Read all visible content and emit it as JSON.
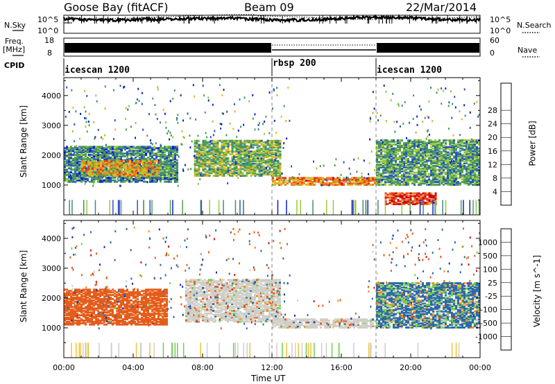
{
  "header": {
    "station": "Goose Bay (fitACF)",
    "beam": "Beam 09",
    "date": "22/Mar/2014"
  },
  "status_panels": {
    "nsky_label": "N.Sky",
    "nsky_ticks": [
      "10^5",
      "10^0"
    ],
    "nsearch_label": "N.Search",
    "nsearch_ticks": [
      "10^5",
      "10^0"
    ],
    "freq_label_top": "Freq.",
    "freq_label_unit": "[MHz]",
    "freq_ticks": [
      "18",
      "8"
    ],
    "nave_label": "Nave",
    "nave_ticks": [
      "60",
      "0"
    ],
    "cpid_label": "CPID",
    "cpid_segments": [
      {
        "name": "icescan 1200",
        "start_hour": 0
      },
      {
        "name": "rbsp 200",
        "start_hour": 12
      },
      {
        "name": "icescan 1200",
        "start_hour": 18
      }
    ]
  },
  "chart_data": [
    {
      "type": "heatmap",
      "title": "",
      "quantity": "Power",
      "ylabel": "Slant Range [km]",
      "ylim": [
        0,
        4600
      ],
      "yticks": [
        "1000",
        "2000",
        "3000",
        "4000"
      ],
      "colorbar_label": "Power [dB]",
      "colorbar_ticks": [
        "4",
        "8",
        "12",
        "16",
        "20",
        "24",
        "28"
      ],
      "colors": [
        "#0b1fd1",
        "#2855b8",
        "#3f8d7c",
        "#52a14a",
        "#9bc83a",
        "#f1b21d",
        "#f07a1e",
        "#e53b1a",
        "#d0000f"
      ],
      "features": [
        {
          "t0": 0.0,
          "t1": 6.5,
          "r0": 1100,
          "r1": 2300,
          "value_db": 10
        },
        {
          "t0": 1.0,
          "t1": 5.5,
          "r0": 1300,
          "r1": 1800,
          "value_db": 20
        },
        {
          "t0": 7.5,
          "t1": 12.5,
          "r0": 1300,
          "r1": 2500,
          "value_db": 14
        },
        {
          "t0": 12.0,
          "t1": 18.0,
          "r0": 1000,
          "r1": 1250,
          "value_db": 22
        },
        {
          "t0": 18.0,
          "t1": 24.0,
          "r0": 1000,
          "r1": 2500,
          "value_db": 12
        },
        {
          "t0": 18.5,
          "t1": 21.5,
          "r0": 350,
          "r1": 750,
          "value_db": 27
        }
      ]
    },
    {
      "type": "heatmap",
      "title": "",
      "quantity": "Velocity",
      "ylabel": "Slant Range [km]",
      "ylim": [
        0,
        4600
      ],
      "yticks": [
        "1000",
        "2000",
        "3000",
        "4000"
      ],
      "colorbar_label": "Velocity [m s^-1]",
      "colorbar_ticks": [
        "1000",
        "500",
        "100",
        "25",
        "-25",
        "-100",
        "-500",
        "-1000"
      ],
      "colors": [
        "#1c2fb8",
        "#2e6aa6",
        "#4b9a7a",
        "#6fcf4a",
        "#cfcfc7",
        "#f2c13a",
        "#f08c1c",
        "#e55d1a",
        "#d91414"
      ],
      "features": [
        {
          "t0": 0.0,
          "t1": 6.0,
          "r0": 1100,
          "r1": 2300,
          "value_ms": -300
        },
        {
          "t0": 7.0,
          "t1": 12.5,
          "r0": 1200,
          "r1": 2600,
          "value_ms": 0
        },
        {
          "t0": 12.0,
          "t1": 18.0,
          "r0": 1000,
          "r1": 1300,
          "value_ms": 0
        },
        {
          "t0": 18.0,
          "t1": 24.0,
          "r0": 1000,
          "r1": 2500,
          "value_ms": 150
        }
      ]
    }
  ],
  "time_axis": {
    "xlabel": "Time UT",
    "xlim": [
      0,
      24
    ],
    "ticks": [
      "00:00",
      "04:00",
      "08:00",
      "12:00",
      "16:00",
      "20:00",
      "00:00"
    ],
    "boundaries_hours": [
      12,
      18
    ]
  }
}
